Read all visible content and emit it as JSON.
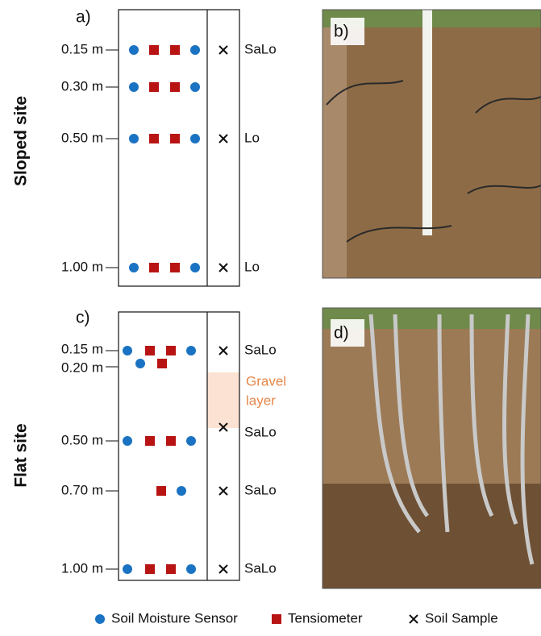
{
  "panel_a": {
    "label": "a)",
    "site": "Sloped site",
    "depths": [
      "0.15 m",
      "0.30 m",
      "0.50 m",
      "1.00 m"
    ],
    "soils": [
      "SaLo",
      "Lo",
      "Lo"
    ]
  },
  "panel_b": {
    "label": "b)"
  },
  "panel_c": {
    "label": "c)",
    "site": "Flat site",
    "depths": [
      "0.15 m",
      "0.20 m",
      "0.50 m",
      "0.70 m",
      "1.00 m"
    ],
    "soils": [
      "SaLo",
      "SaLo",
      "SaLo",
      "SaLo"
    ],
    "gravel_label": [
      "Gravel",
      "layer"
    ]
  },
  "panel_d": {
    "label": "d)"
  },
  "legend": [
    "Soil Moisture Sensor",
    "Tensiometer",
    "Soil Sample"
  ]
}
